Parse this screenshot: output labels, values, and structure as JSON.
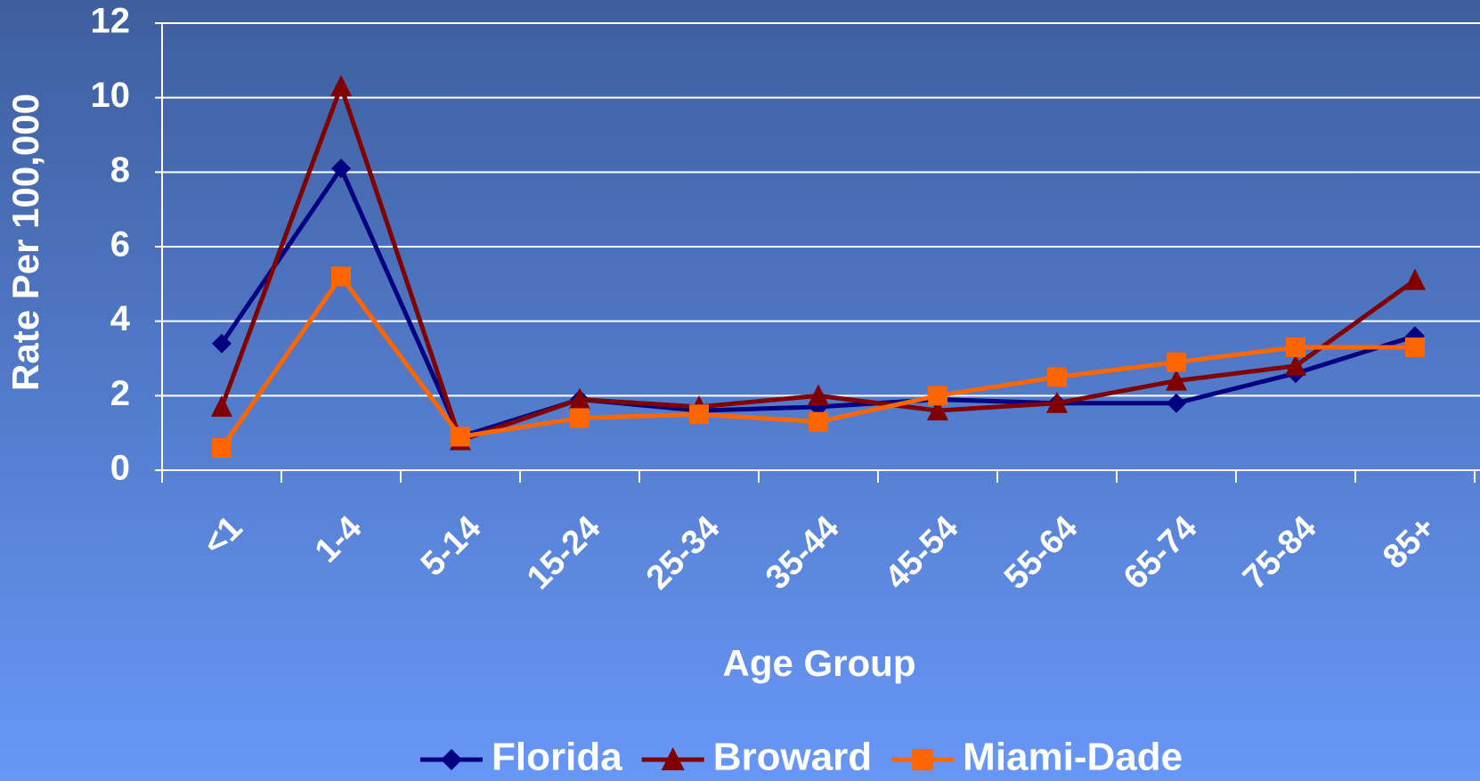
{
  "chart_data": {
    "type": "line",
    "x_label": "Age Group",
    "y_label": "Rate Per 100,000",
    "categories": [
      "<1",
      "1-4",
      "5-14",
      "15-24",
      "25-34",
      "35-44",
      "45-54",
      "55-64",
      "65-74",
      "75-84",
      "85+"
    ],
    "series": [
      {
        "name": "Florida",
        "color": "#000080",
        "marker": "diamond",
        "values": [
          3.4,
          8.1,
          0.9,
          1.9,
          1.6,
          1.7,
          1.9,
          1.8,
          1.8,
          2.6,
          3.6
        ]
      },
      {
        "name": "Broward",
        "color": "#800000",
        "marker": "triangle",
        "values": [
          1.7,
          10.3,
          0.8,
          1.9,
          1.7,
          2.0,
          1.6,
          1.8,
          2.4,
          2.8,
          5.1
        ]
      },
      {
        "name": "Miami-Dade",
        "color": "#ff6600",
        "marker": "square",
        "values": [
          0.6,
          5.2,
          0.9,
          1.4,
          1.5,
          1.3,
          2.0,
          2.5,
          2.9,
          3.3,
          3.3
        ]
      }
    ],
    "ylim": [
      0,
      12
    ],
    "yticks": [
      0,
      2,
      4,
      6,
      8,
      10,
      12
    ],
    "grid": true,
    "legend": "bottom"
  }
}
